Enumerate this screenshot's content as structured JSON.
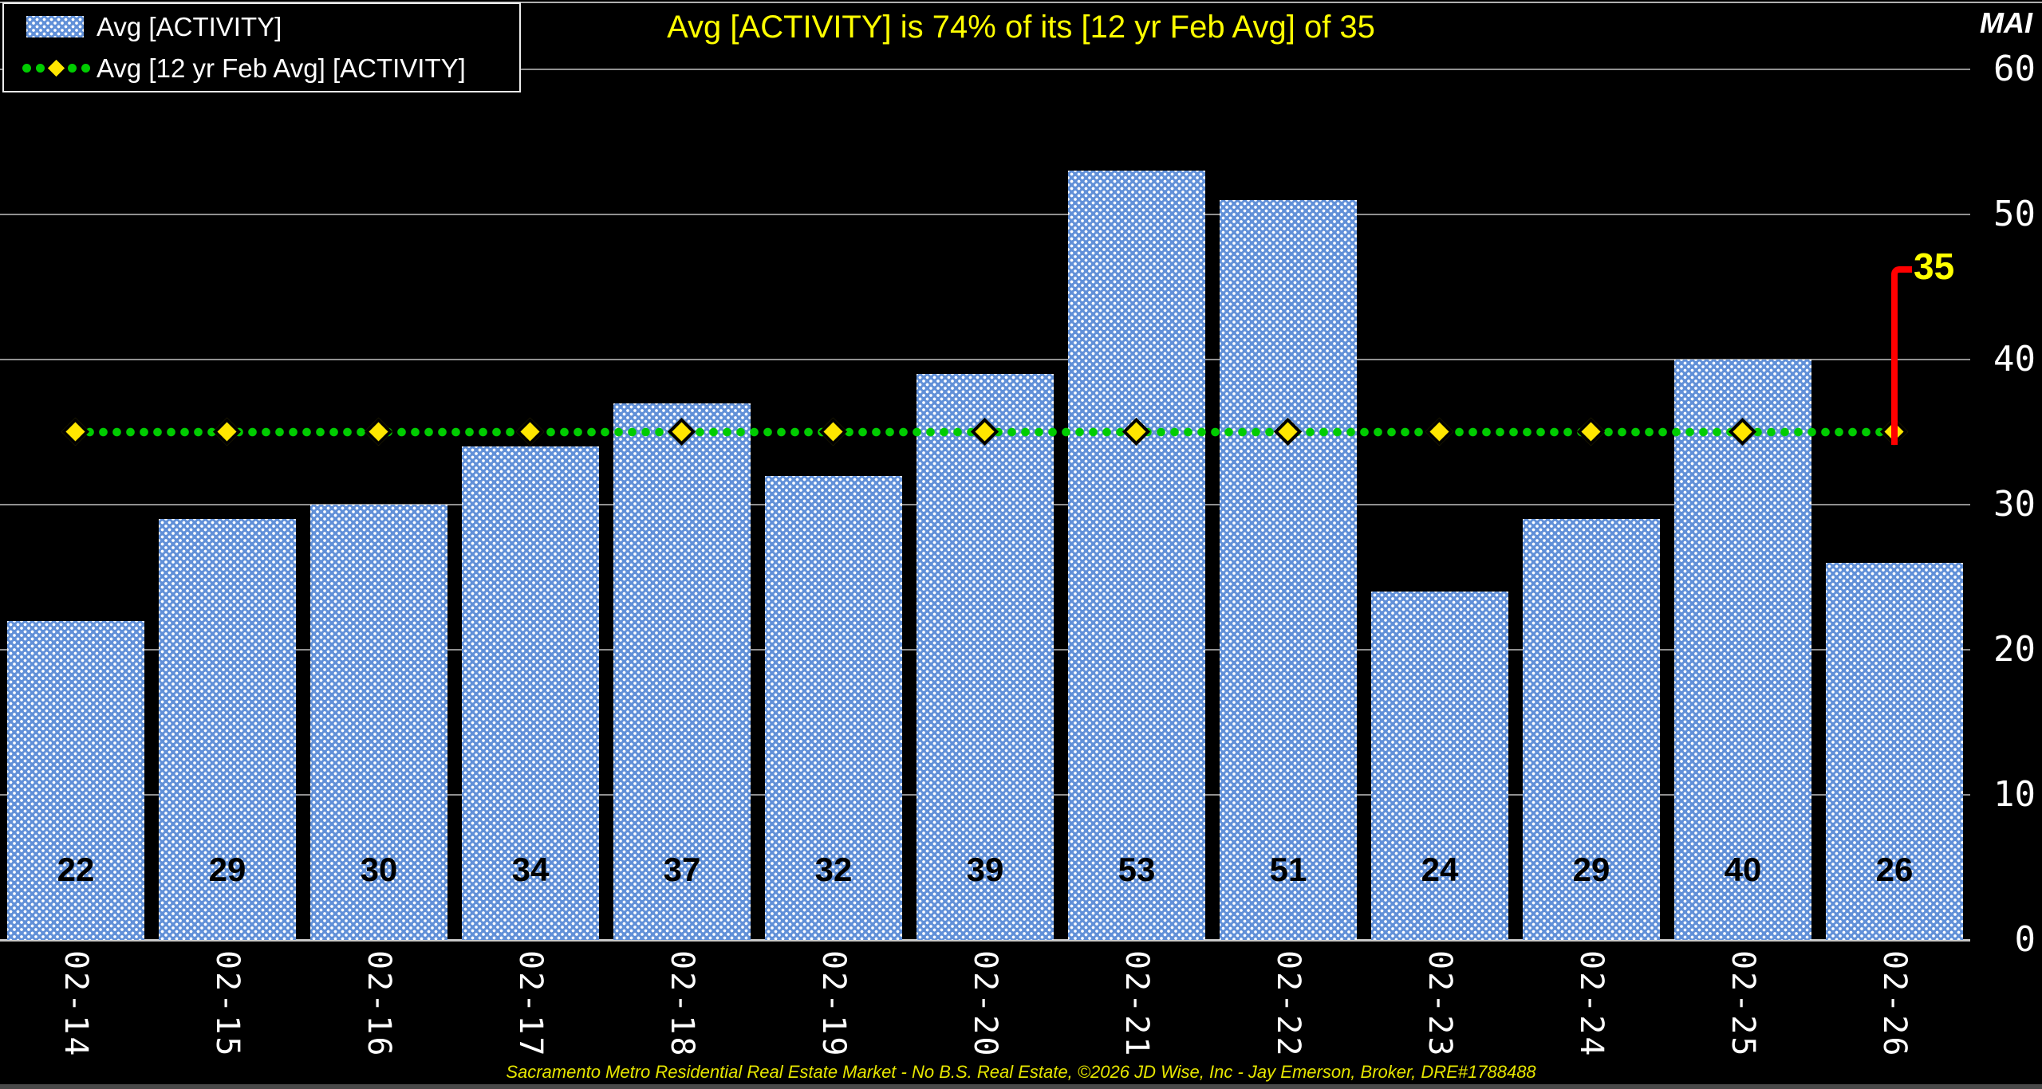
{
  "header": {
    "title": "Avg [ACTIVITY] is 74% of its [12 yr Feb Avg] of 35",
    "watermark": "MAI"
  },
  "legend": {
    "items": [
      {
        "label": "Avg [ACTIVITY]",
        "marker": "blue-dotted-bar-swatch"
      },
      {
        "label": "Avg [12 yr Feb Avg] [ACTIVITY]",
        "marker": "green-dotted-line-with-yellow-diamond"
      }
    ]
  },
  "chart_data": {
    "type": "bar",
    "title": "Avg [ACTIVITY] is 74% of its [12 yr Feb Avg] of 35",
    "categories": [
      "02-14",
      "02-15",
      "02-16",
      "02-17",
      "02-18",
      "02-19",
      "02-20",
      "02-21",
      "02-22",
      "02-23",
      "02-24",
      "02-25",
      "02-26"
    ],
    "series": [
      {
        "name": "Avg [ACTIVITY]",
        "type": "bar",
        "values": [
          22,
          29,
          30,
          34,
          37,
          32,
          39,
          53,
          51,
          24,
          29,
          40,
          26
        ]
      },
      {
        "name": "Avg [12 yr Feb Avg] [ACTIVITY]",
        "type": "line",
        "values": [
          35,
          35,
          35,
          35,
          35,
          35,
          35,
          35,
          35,
          35,
          35,
          35,
          35
        ]
      }
    ],
    "xlabel": "",
    "ylabel": "",
    "ylim": [
      0,
      60
    ],
    "yticks": [
      0,
      10,
      20,
      30,
      40,
      50,
      60
    ],
    "y_axis_side": "right",
    "grid": true,
    "legend_position": "top-left",
    "bar_value_labels": true,
    "annotation": {
      "label": "35",
      "value": 35,
      "category": "02-26"
    }
  },
  "annotation": {
    "label": "35"
  },
  "footer": {
    "credit": "Sacramento Metro Residential Real Estate Market - No B.S. Real Estate, ©2026 JD Wise, Inc - Jay Emerson, Broker, DRE#1788488"
  },
  "colors": {
    "background": "#000000",
    "bar_fill": "#6190d8",
    "bar_pattern_dot": "#ffffff",
    "bar_value_label": "#000000",
    "average_line": "#00cc00",
    "diamond_marker": "#ffe600",
    "gridline": "#909090",
    "baseline": "#c8c8c8",
    "axis_text": "#ffffff",
    "title_text": "#ffff00",
    "annotation_line": "#ff0000",
    "annotation_text": "#ffff00",
    "footer_text": "#e6e600"
  }
}
